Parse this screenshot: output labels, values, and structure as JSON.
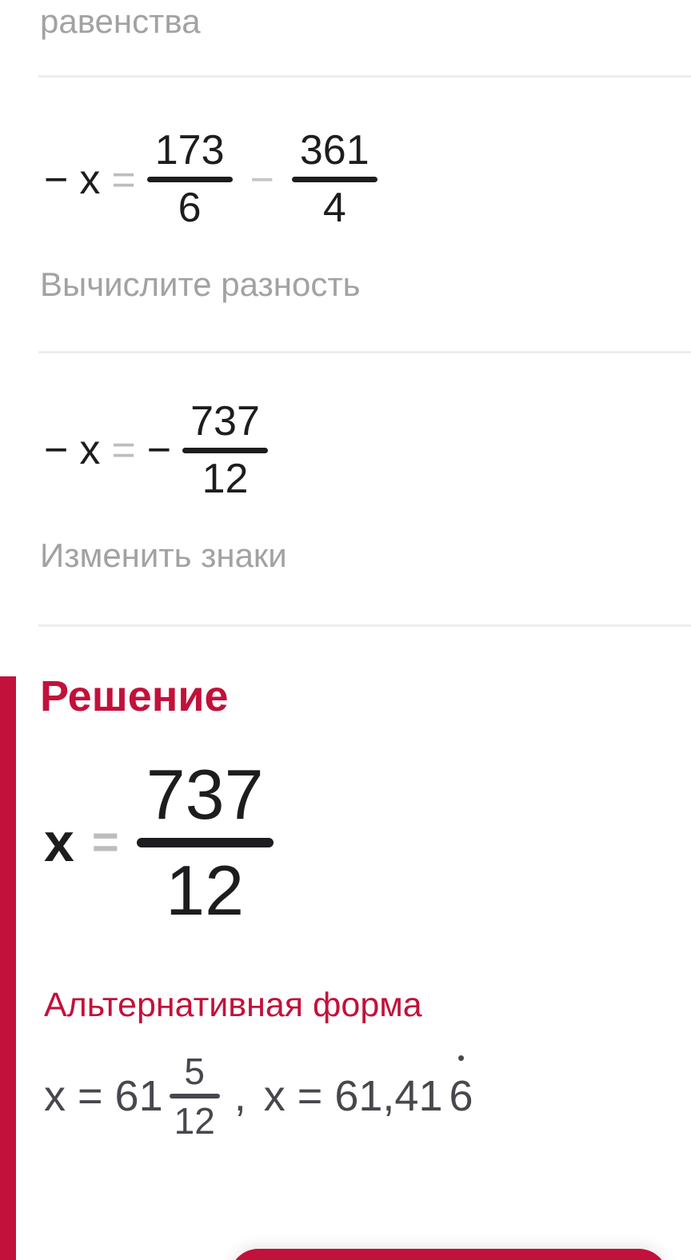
{
  "colors": {
    "accent_red": "#C2113B",
    "muted_text": "#A2A2A2",
    "equation_text": "#1D1D1F",
    "divider": "#EDEDED",
    "alt_text": "#47474D",
    "light_operator": "#C6C6C6",
    "equals_gray": "#BDBDBD"
  },
  "previous_step_tail": "равенства",
  "eq1": {
    "neg": "−",
    "var": "x",
    "eq": "=",
    "num1": "173",
    "den1": "6",
    "op": "−",
    "num2": "361",
    "den2": "4"
  },
  "step1_label": "Вычислите разность",
  "eq2": {
    "neg": "−",
    "var": "x",
    "eq": "=",
    "neg2": "−",
    "num": "737",
    "den": "12"
  },
  "step2_label": "Изменить знаки",
  "solution": {
    "heading": "Решение",
    "var": "x",
    "eq": "=",
    "num": "737",
    "den": "12",
    "alt_heading": "Альтернативная форма",
    "alt_lhs": "x = 61",
    "alt_num": "5",
    "alt_den": "12",
    "alt_sep": ",",
    "alt_rhs_main": "x = 61,41",
    "alt_rhs_recurring": "6",
    "alt_rhs_dot": "•"
  }
}
